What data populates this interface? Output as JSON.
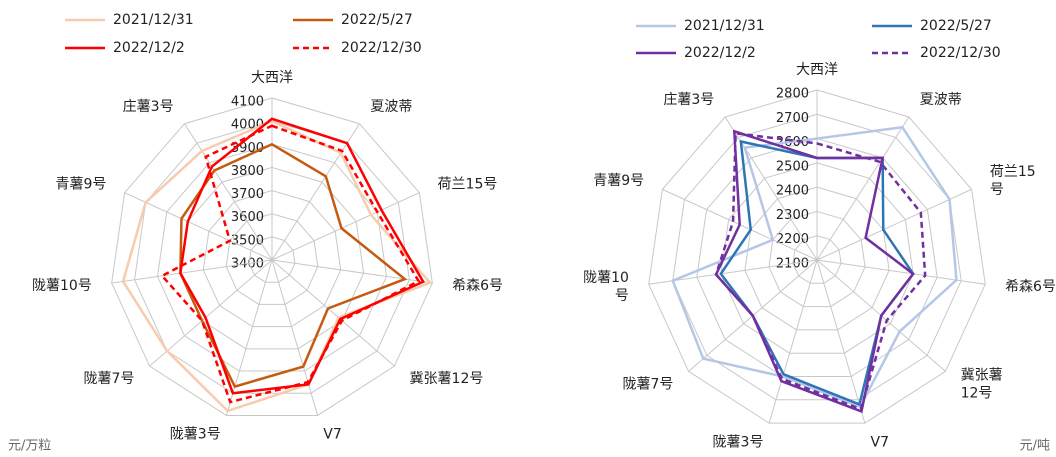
{
  "chart_data": [
    {
      "type": "radar",
      "categories": [
        "大西洋",
        "夏波蒂",
        "荷兰15号",
        "希森6号",
        "冀张薯12号",
        "V7",
        "陇薯3号",
        "陇薯7号",
        "陇薯10号",
        "青薯9号",
        "庄薯3号"
      ],
      "rlim": [
        3400,
        4100
      ],
      "rticks": [
        3400,
        3500,
        3600,
        3700,
        3800,
        3900,
        4000,
        4100
      ],
      "unit": "元/万粒",
      "series": [
        {
          "name": "2021/12/31",
          "color": "#f8cbad",
          "dashed": false,
          "values": [
            4000,
            3950,
            3870,
            4090,
            3780,
            3960,
            4080,
            4000,
            4050,
            4000,
            3960
          ]
        },
        {
          "name": "2022/5/27",
          "color": "#c55a11",
          "dashed": false,
          "values": [
            3900,
            3830,
            3730,
            3980,
            3720,
            3880,
            3970,
            3800,
            3800,
            3830,
            3860
          ]
        },
        {
          "name": "2022/12/2",
          "color": "#ff0000",
          "dashed": false,
          "values": [
            4010,
            4000,
            3920,
            4060,
            3790,
            3960,
            4000,
            3780,
            3800,
            3800,
            3880
          ]
        },
        {
          "name": "2022/12/30",
          "color": "#ff0000",
          "dashed": true,
          "values": [
            3980,
            3960,
            3900,
            4040,
            3800,
            3950,
            4040,
            3800,
            3880,
            3600,
            3930
          ]
        }
      ]
    },
    {
      "type": "radar",
      "categories": [
        "大西洋",
        "夏波蒂",
        "荷兰15\n号",
        "希森6号",
        "冀张薯\n12号",
        "V7",
        "陇薯3号",
        "陇薯7号",
        "陇薯10\n号",
        "青薯9号",
        "庄薯3号"
      ],
      "rlim": [
        2100,
        2800
      ],
      "rticks": [
        2100,
        2200,
        2300,
        2400,
        2500,
        2600,
        2700,
        2800
      ],
      "unit": "元/吨",
      "series": [
        {
          "name": "2021/12/31",
          "color": "#b4c7e7",
          "dashed": false,
          "values": [
            2600,
            2750,
            2700,
            2680,
            2550,
            2730,
            2600,
            2720,
            2700,
            2300,
            2650
          ]
        },
        {
          "name": "2022/5/27",
          "color": "#2e75b6",
          "dashed": false,
          "values": [
            2520,
            2600,
            2400,
            2500,
            2450,
            2720,
            2590,
            2450,
            2500,
            2400,
            2680
          ]
        },
        {
          "name": "2022/12/2",
          "color": "#7030a0",
          "dashed": false,
          "values": [
            2520,
            2600,
            2320,
            2500,
            2450,
            2750,
            2620,
            2450,
            2520,
            2450,
            2730
          ]
        },
        {
          "name": "2022/12/30",
          "color": "#7030a0",
          "dashed": true,
          "values": [
            2580,
            2580,
            2570,
            2550,
            2480,
            2740,
            2610,
            2450,
            2520,
            2480,
            2720
          ]
        }
      ]
    }
  ]
}
